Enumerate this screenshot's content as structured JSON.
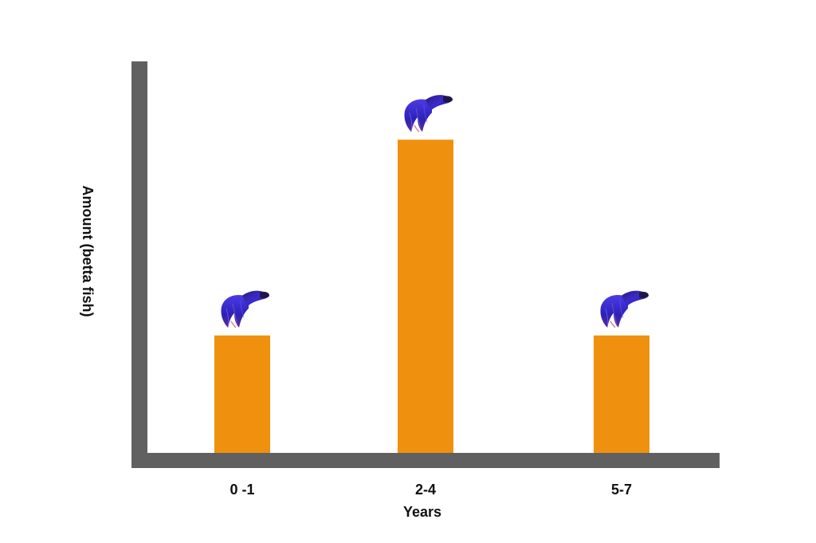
{
  "chart_data": {
    "type": "bar",
    "categories": [
      "0 -1",
      "2-4",
      "5-7"
    ],
    "values": [
      3,
      8,
      3
    ],
    "ylim": [
      0,
      10
    ],
    "xlabel": "Years",
    "ylabel": "Amount  (betta fish)",
    "grid": false,
    "legend": "none",
    "bar_color": "#F0900F",
    "axis_color": "#606060",
    "marker": "betta-fish-icon"
  }
}
